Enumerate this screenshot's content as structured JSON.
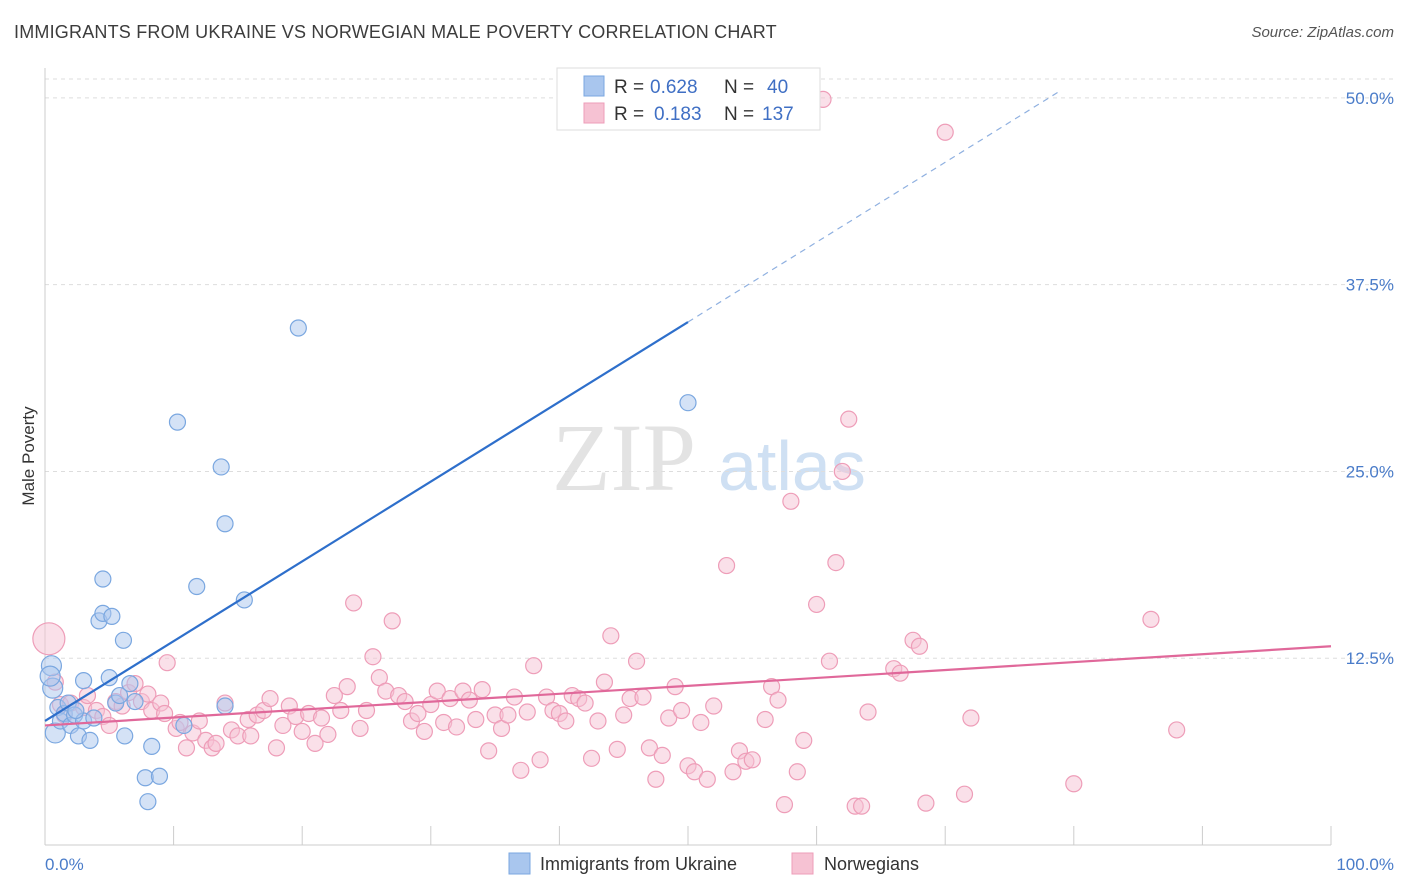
{
  "title": "IMMIGRANTS FROM UKRAINE VS NORWEGIAN MALE POVERTY CORRELATION CHART",
  "source": "Source: ZipAtlas.com",
  "watermark": {
    "zip": "ZIP",
    "atlas": "atlas"
  },
  "chart_data": {
    "type": "scatter",
    "title": "IMMIGRANTS FROM UKRAINE VS NORWEGIAN MALE POVERTY CORRELATION CHART",
    "xlabel": "",
    "ylabel": "Male Poverty",
    "xlim": [
      0,
      100
    ],
    "ylim": [
      0,
      52
    ],
    "x_tick_labels": {
      "min": "0.0%",
      "max": "100.0%"
    },
    "y_ticks": [
      {
        "value": 12.5,
        "label": "12.5%"
      },
      {
        "value": 25.0,
        "label": "25.0%"
      },
      {
        "value": 37.5,
        "label": "37.5%"
      },
      {
        "value": 50.0,
        "label": "50.0%"
      }
    ],
    "grid": true,
    "legend_position": "top-center",
    "stats": [
      {
        "series": "Immigrants from Ukraine",
        "r_label": "R =",
        "r": "0.628",
        "n_label": "N =",
        "n": "40"
      },
      {
        "series": "Norwegians",
        "r_label": "R =",
        "r": "0.183",
        "n_label": "N =",
        "n": "137"
      }
    ],
    "series": [
      {
        "name": "Immigrants from Ukraine",
        "color": "#7aa7e0",
        "fill": "#a9c6ee",
        "line_color": "#2e6fcb",
        "trend": {
          "x0": 0,
          "y0": 8.3,
          "x1": 50,
          "y1": 35.0,
          "dash_x_end": 79,
          "dash_y_end": 50.5
        },
        "points": [
          [
            0.5,
            12
          ],
          [
            0.6,
            10.5
          ],
          [
            0.8,
            7.5
          ],
          [
            1.0,
            9.2
          ],
          [
            1.2,
            8.3
          ],
          [
            1.5,
            8.8
          ],
          [
            1.8,
            9.5
          ],
          [
            2.0,
            8.0
          ],
          [
            2.3,
            8.7
          ],
          [
            2.6,
            7.3
          ],
          [
            3.0,
            8.3
          ],
          [
            3.0,
            11.0
          ],
          [
            3.5,
            7.0
          ],
          [
            3.8,
            8.5
          ],
          [
            4.2,
            15
          ],
          [
            4.5,
            15.5
          ],
          [
            4.5,
            17.8
          ],
          [
            5.0,
            11.2
          ],
          [
            5.2,
            15.3
          ],
          [
            5.5,
            9.5
          ],
          [
            5.8,
            10
          ],
          [
            6.1,
            13.7
          ],
          [
            6.2,
            7.3
          ],
          [
            6.6,
            10.8
          ],
          [
            7.0,
            9.6
          ],
          [
            7.8,
            4.5
          ],
          [
            8.0,
            2.9
          ],
          [
            8.3,
            6.6
          ],
          [
            8.9,
            4.6
          ],
          [
            10.3,
            28.3
          ],
          [
            10.8,
            8.0
          ],
          [
            11.8,
            17.3
          ],
          [
            13.7,
            25.3
          ],
          [
            14.0,
            21.5
          ],
          [
            14.0,
            9.3
          ],
          [
            15.5,
            16.4
          ],
          [
            19.7,
            34.6
          ],
          [
            50.0,
            29.6
          ],
          [
            0.4,
            11.3
          ],
          [
            2.4,
            9.0
          ]
        ]
      },
      {
        "name": "Norwegians",
        "color": "#ee9db8",
        "fill": "#f6c2d3",
        "line_color": "#e0689a",
        "trend": {
          "x0": 0,
          "y0": 8.0,
          "x1": 100,
          "y1": 13.3
        },
        "points": [
          [
            0.3,
            13.8
          ],
          [
            0.8,
            10.9
          ],
          [
            1.2,
            9.4
          ],
          [
            1.5,
            8.7
          ],
          [
            2.0,
            9.5
          ],
          [
            3.0,
            9.2
          ],
          [
            3.3,
            10.0
          ],
          [
            4.0,
            9.0
          ],
          [
            4.5,
            8.6
          ],
          [
            5.0,
            8.0
          ],
          [
            5.5,
            9.6
          ],
          [
            6.0,
            9.3
          ],
          [
            6.5,
            10.2
          ],
          [
            7.0,
            10.8
          ],
          [
            7.5,
            9.6
          ],
          [
            8.0,
            10.1
          ],
          [
            8.3,
            9.0
          ],
          [
            9.0,
            9.5
          ],
          [
            9.3,
            8.8
          ],
          [
            9.5,
            12.2
          ],
          [
            10.2,
            7.8
          ],
          [
            10.5,
            8.2
          ],
          [
            11.0,
            6.5
          ],
          [
            11.5,
            7.5
          ],
          [
            12.0,
            8.3
          ],
          [
            12.5,
            7.0
          ],
          [
            13.0,
            6.5
          ],
          [
            13.3,
            6.8
          ],
          [
            14.0,
            9.5
          ],
          [
            14.5,
            7.7
          ],
          [
            15.0,
            7.3
          ],
          [
            15.8,
            8.4
          ],
          [
            16.0,
            7.3
          ],
          [
            16.5,
            8.7
          ],
          [
            17.0,
            9.0
          ],
          [
            17.5,
            9.8
          ],
          [
            18.0,
            6.5
          ],
          [
            18.5,
            8.0
          ],
          [
            19.0,
            9.3
          ],
          [
            19.5,
            8.6
          ],
          [
            20.0,
            7.6
          ],
          [
            20.5,
            8.8
          ],
          [
            21.0,
            6.8
          ],
          [
            21.5,
            8.5
          ],
          [
            22.0,
            7.4
          ],
          [
            22.5,
            10.0
          ],
          [
            23.0,
            9.0
          ],
          [
            23.5,
            10.6
          ],
          [
            24.0,
            16.2
          ],
          [
            24.5,
            7.8
          ],
          [
            25.0,
            9.0
          ],
          [
            25.5,
            12.6
          ],
          [
            26.0,
            11.2
          ],
          [
            26.5,
            10.3
          ],
          [
            27.0,
            15.0
          ],
          [
            27.5,
            10.0
          ],
          [
            28.0,
            9.6
          ],
          [
            28.5,
            8.3
          ],
          [
            29.0,
            8.8
          ],
          [
            29.5,
            7.6
          ],
          [
            30.0,
            9.4
          ],
          [
            30.5,
            10.3
          ],
          [
            31.0,
            8.2
          ],
          [
            31.5,
            9.8
          ],
          [
            32.0,
            7.9
          ],
          [
            32.5,
            10.3
          ],
          [
            33.0,
            9.7
          ],
          [
            33.5,
            8.4
          ],
          [
            34.0,
            10.4
          ],
          [
            34.5,
            6.3
          ],
          [
            35.0,
            8.7
          ],
          [
            35.5,
            7.8
          ],
          [
            36.0,
            8.7
          ],
          [
            36.5,
            9.9
          ],
          [
            37.0,
            5.0
          ],
          [
            37.5,
            8.9
          ],
          [
            38.0,
            12.0
          ],
          [
            38.5,
            5.7
          ],
          [
            39.0,
            9.9
          ],
          [
            39.5,
            9.0
          ],
          [
            40.0,
            8.8
          ],
          [
            40.5,
            8.3
          ],
          [
            41.0,
            10.0
          ],
          [
            41.5,
            9.8
          ],
          [
            42.0,
            9.5
          ],
          [
            42.5,
            5.8
          ],
          [
            43.0,
            8.3
          ],
          [
            43.5,
            10.9
          ],
          [
            44.0,
            14.0
          ],
          [
            44.5,
            6.4
          ],
          [
            45.0,
            8.7
          ],
          [
            45.5,
            9.8
          ],
          [
            46.0,
            12.3
          ],
          [
            46.5,
            9.9
          ],
          [
            47.0,
            6.5
          ],
          [
            47.5,
            4.4
          ],
          [
            48.0,
            6.0
          ],
          [
            48.5,
            8.5
          ],
          [
            49.0,
            10.6
          ],
          [
            49.5,
            9.0
          ],
          [
            50.0,
            5.3
          ],
          [
            50.5,
            4.9
          ],
          [
            51.0,
            8.2
          ],
          [
            51.5,
            4.4
          ],
          [
            52.0,
            9.3
          ],
          [
            53.0,
            18.7
          ],
          [
            53.5,
            4.9
          ],
          [
            54.0,
            6.3
          ],
          [
            54.5,
            5.6
          ],
          [
            55.0,
            5.7
          ],
          [
            56.0,
            8.4
          ],
          [
            56.5,
            10.6
          ],
          [
            57.0,
            9.7
          ],
          [
            57.5,
            2.7
          ],
          [
            58.0,
            23.0
          ],
          [
            58.5,
            4.9
          ],
          [
            59.0,
            7.0
          ],
          [
            60.0,
            16.1
          ],
          [
            61.0,
            12.3
          ],
          [
            61.5,
            18.9
          ],
          [
            62.0,
            25.0
          ],
          [
            62.5,
            28.5
          ],
          [
            63.0,
            2.6
          ],
          [
            63.5,
            2.6
          ],
          [
            64.0,
            8.9
          ],
          [
            66.0,
            11.8
          ],
          [
            66.5,
            11.5
          ],
          [
            67.5,
            13.7
          ],
          [
            68.0,
            13.3
          ],
          [
            68.5,
            2.8
          ],
          [
            70.0,
            47.7
          ],
          [
            72.0,
            8.5
          ],
          [
            80.0,
            4.1
          ],
          [
            86.0,
            15.1
          ],
          [
            88.0,
            7.7
          ],
          [
            60.5,
            49.9
          ],
          [
            71.5,
            3.4
          ]
        ]
      }
    ]
  }
}
